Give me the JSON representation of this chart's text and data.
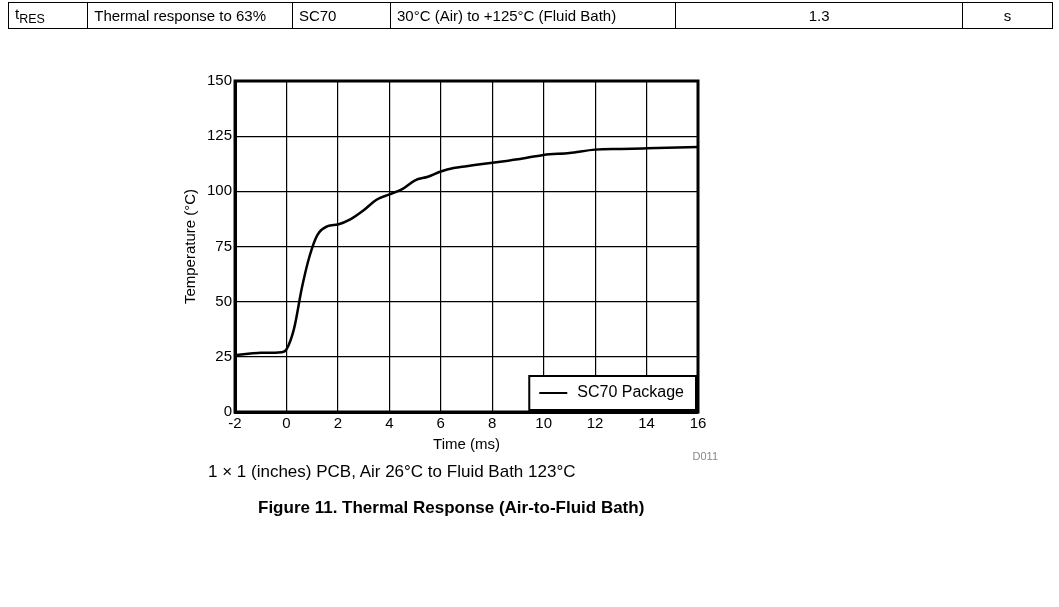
{
  "chart_data": {
    "type": "line",
    "title": "Figure 11. Thermal Response (Air-to-Fluid Bath)",
    "xlabel": "Time (ms)",
    "ylabel": "Temperature (°C)",
    "annotations": [
      "t$_{RES}$",
      "Thermal response to 63%",
      "SC70",
      "30°C (Air) to +125°C (Fluid Bath)",
      "1.3",
      "s",
      "D011",
      "1 × 1 (inches) PCB, Air 26°C to Fluid Bath 123°C"
    ],
    "x": [
      -2,
      -1,
      -0.2,
      0,
      0.3,
      0.6,
      0.9,
      1.2,
      1.6,
      2,
      2.5,
      3,
      3.5,
      4,
      4.5,
      5,
      5.5,
      6,
      6.5,
      7,
      8,
      9,
      10,
      11,
      12,
      13,
      14,
      16
    ],
    "series": [
      {
        "name": "SC70 Package",
        "color": "#000000",
        "values": [
          25.7,
          26.8,
          27.1,
          28.4,
          38,
          56.3,
          70.7,
          80.2,
          84.2,
          85,
          87.4,
          91.4,
          96.2,
          98.6,
          101,
          105,
          106.6,
          109,
          110.6,
          111.4,
          113,
          114.5,
          116.5,
          117.4,
          118.9,
          119.2,
          119.5,
          120.1
        ]
      }
    ],
    "xlim": [
      -2,
      16
    ],
    "xticks": [
      -2,
      0,
      2,
      4,
      6,
      8,
      10,
      12,
      14,
      16
    ],
    "ylim": [
      0,
      150
    ],
    "yticks": [
      0,
      25,
      50,
      75,
      100,
      125,
      150
    ],
    "grid": true,
    "legend": "bottom right",
    "marker": "none",
    "line_style": "solid"
  }
}
